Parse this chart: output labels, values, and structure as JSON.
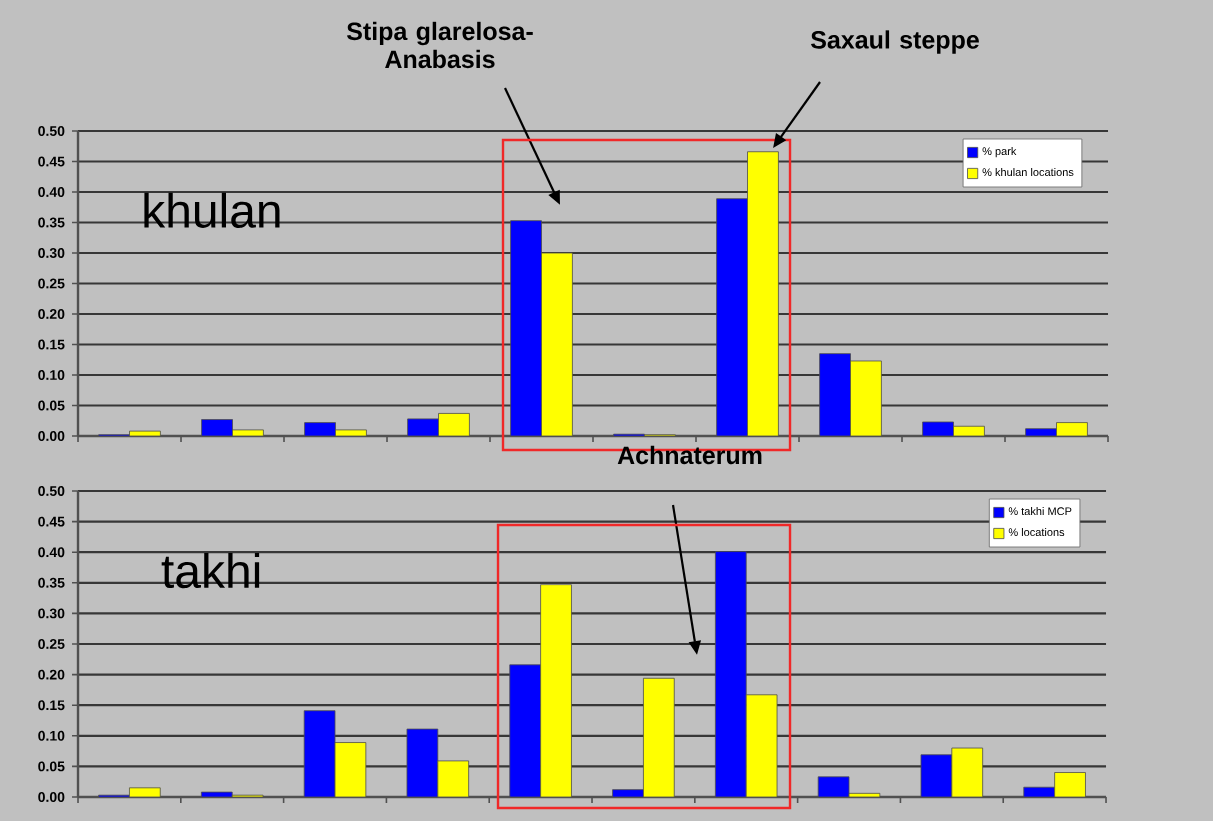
{
  "chart_data": [
    {
      "type": "bar",
      "title": "khulan",
      "categories": [
        null,
        null,
        null,
        null,
        null,
        null,
        null,
        null,
        null,
        null
      ],
      "series": [
        {
          "name": "% park",
          "color": "#0000ff",
          "values": [
            0.002,
            0.027,
            0.022,
            0.028,
            0.353,
            0.003,
            0.389,
            0.135,
            0.023,
            0.012
          ]
        },
        {
          "name": "% khulan locations",
          "color": "#ffff00",
          "values": [
            0.008,
            0.01,
            0.01,
            0.037,
            0.3,
            0.002,
            0.466,
            0.123,
            0.016,
            0.022
          ]
        }
      ],
      "ylim": [
        0,
        0.5
      ],
      "yticks": [
        {
          "value": 0,
          "label": "0.00"
        },
        {
          "value": 0.05,
          "label": "0.05"
        },
        {
          "value": 0.1,
          "label": "0.10"
        },
        {
          "value": 0.15,
          "label": "0.15"
        },
        {
          "value": 0.2,
          "label": "0.20"
        },
        {
          "value": 0.25,
          "label": "0.25"
        },
        {
          "value": 0.3,
          "label": "0.30"
        },
        {
          "value": 0.35,
          "label": "0.35"
        },
        {
          "value": 0.4,
          "label": "0.40"
        },
        {
          "value": 0.45,
          "label": "0.45"
        },
        {
          "value": 0.5,
          "label": "0.50"
        }
      ],
      "grid": "y",
      "legend": "top right",
      "tick_labels": "y",
      "annotations": [
        "Stipa glarelosa-Anabasis",
        "Saxaul steppe"
      ]
    },
    {
      "type": "bar",
      "title": "takhi",
      "categories": [
        null,
        null,
        null,
        null,
        null,
        null,
        null,
        null,
        null,
        null
      ],
      "series": [
        {
          "name": "% takhi MCP",
          "color": "#0000ff",
          "values": [
            0.003,
            0.008,
            0.141,
            0.111,
            0.216,
            0.012,
            0.401,
            0.033,
            0.069,
            0.016
          ]
        },
        {
          "name": "% locations",
          "color": "#ffff00",
          "values": [
            0.015,
            0.003,
            0.089,
            0.059,
            0.347,
            0.194,
            0.167,
            0.006,
            0.08,
            0.04
          ]
        }
      ],
      "ylim": [
        0,
        0.5
      ],
      "yticks": [
        {
          "value": 0,
          "label": "0.00"
        },
        {
          "value": 0.05,
          "label": "0.05"
        },
        {
          "value": 0.1,
          "label": "0.10"
        },
        {
          "value": 0.15,
          "label": "0.15"
        },
        {
          "value": 0.2,
          "label": "0.20"
        },
        {
          "value": 0.25,
          "label": "0.25"
        },
        {
          "value": 0.3,
          "label": "0.30"
        },
        {
          "value": 0.35,
          "label": "0.35"
        },
        {
          "value": 0.4,
          "label": "0.40"
        },
        {
          "value": 0.45,
          "label": "0.45"
        },
        {
          "value": 0.5,
          "label": "0.50"
        }
      ],
      "grid": "y",
      "legend": "top right",
      "tick_labels": "y",
      "annotations": [
        "Achnaterum"
      ]
    }
  ]
}
